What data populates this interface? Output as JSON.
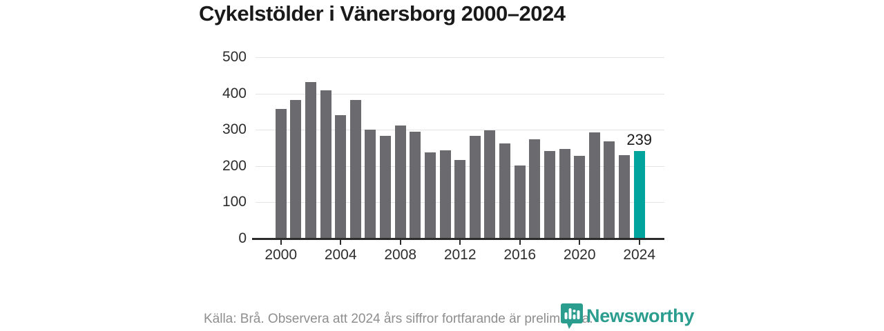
{
  "title": "Cykelstölder i Vänersborg 2000–2024",
  "chart_data": {
    "type": "bar",
    "title": "Cykelstölder i Vänersborg 2000–2024",
    "categories": [
      2000,
      2001,
      2002,
      2003,
      2004,
      2005,
      2006,
      2007,
      2008,
      2009,
      2010,
      2011,
      2012,
      2013,
      2014,
      2015,
      2016,
      2017,
      2018,
      2019,
      2020,
      2021,
      2022,
      2023,
      2024
    ],
    "values": [
      356,
      381,
      430,
      406,
      338,
      381,
      298,
      282,
      309,
      293,
      236,
      241,
      214,
      282,
      296,
      261,
      200,
      272,
      240,
      246,
      227,
      290,
      266,
      228,
      239
    ],
    "xlabel": "",
    "ylabel": "",
    "ylim": [
      0,
      500
    ],
    "yticks": [
      0,
      100,
      200,
      300,
      400,
      500
    ],
    "xticks": [
      2000,
      2004,
      2008,
      2012,
      2016,
      2020,
      2024
    ],
    "grid": true,
    "legend": "none",
    "bar_color": "#6a6a6f",
    "highlight_color": "#00a49c",
    "highlight_index": 24,
    "highlight_label": "239"
  },
  "footer": {
    "source_text": "Källa: Brå. Observera att 2024 års siffror fortfarande är preliminära."
  },
  "branding": {
    "logo_text": "Newsworthy",
    "logo_color": "#2a9d8f",
    "logo_icon": "newsworthy-badge-icon"
  }
}
